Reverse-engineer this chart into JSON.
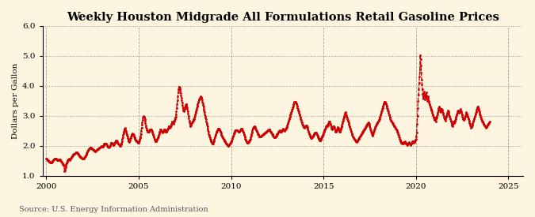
{
  "title": "Weekly Houston Midgrade All Formulations Retail Gasoline Prices",
  "ylabel": "Dollars per Gallon",
  "source": "Source: U.S. Energy Information Administration",
  "ylim": [
    1.0,
    6.0
  ],
  "xlim": [
    1999.8,
    2025.8
  ],
  "yticks": [
    1.0,
    2.0,
    3.0,
    4.0,
    5.0,
    6.0
  ],
  "xticks": [
    2000,
    2005,
    2010,
    2015,
    2020,
    2025
  ],
  "line_color": "#cc0000",
  "background_color": "#fdf5e0",
  "title_fontsize": 10.5,
  "label_fontsize": 7.5,
  "tick_fontsize": 7.5,
  "source_fontsize": 7,
  "prices": [
    1.58,
    1.57,
    1.55,
    1.53,
    1.52,
    1.51,
    1.5,
    1.49,
    1.48,
    1.47,
    1.46,
    1.45,
    1.44,
    1.43,
    1.43,
    1.44,
    1.46,
    1.48,
    1.5,
    1.52,
    1.53,
    1.54,
    1.55,
    1.56,
    1.57,
    1.58,
    1.58,
    1.57,
    1.56,
    1.55,
    1.54,
    1.53,
    1.52,
    1.52,
    1.52,
    1.53,
    1.54,
    1.55,
    1.55,
    1.54,
    1.52,
    1.5,
    1.48,
    1.46,
    1.44,
    1.42,
    1.4,
    1.38,
    1.36,
    1.35,
    1.33,
    1.15,
    1.18,
    1.22,
    1.28,
    1.34,
    1.38,
    1.42,
    1.45,
    1.48,
    1.51,
    1.53,
    1.55,
    1.56,
    1.55,
    1.54,
    1.53,
    1.54,
    1.56,
    1.58,
    1.6,
    1.62,
    1.64,
    1.66,
    1.68,
    1.7,
    1.71,
    1.72,
    1.73,
    1.74,
    1.74,
    1.75,
    1.76,
    1.77,
    1.78,
    1.79,
    1.78,
    1.77,
    1.76,
    1.74,
    1.72,
    1.7,
    1.68,
    1.66,
    1.65,
    1.64,
    1.63,
    1.62,
    1.61,
    1.6,
    1.59,
    1.58,
    1.57,
    1.56,
    1.56,
    1.57,
    1.58,
    1.6,
    1.62,
    1.64,
    1.65,
    1.67,
    1.7,
    1.73,
    1.76,
    1.79,
    1.82,
    1.84,
    1.86,
    1.88,
    1.9,
    1.91,
    1.92,
    1.93,
    1.94,
    1.94,
    1.93,
    1.92,
    1.91,
    1.9,
    1.89,
    1.88,
    1.87,
    1.86,
    1.85,
    1.84,
    1.83,
    1.82,
    1.82,
    1.83,
    1.84,
    1.85,
    1.86,
    1.87,
    1.88,
    1.89,
    1.9,
    1.91,
    1.92,
    1.93,
    1.94,
    1.95,
    1.96,
    1.97,
    1.98,
    1.99,
    1.99,
    1.98,
    1.97,
    1.98,
    2.0,
    2.02,
    2.04,
    2.06,
    2.07,
    2.08,
    2.08,
    2.07,
    2.06,
    2.05,
    2.03,
    2.01,
    1.99,
    1.97,
    1.96,
    1.95,
    1.96,
    1.97,
    1.98,
    2.0,
    2.03,
    2.06,
    2.09,
    2.1,
    2.09,
    2.08,
    2.06,
    2.04,
    2.02,
    2.03,
    2.05,
    2.07,
    2.09,
    2.11,
    2.13,
    2.15,
    2.17,
    2.18,
    2.16,
    2.14,
    2.12,
    2.1,
    2.08,
    2.06,
    2.05,
    2.04,
    2.02,
    2.0,
    2.0,
    2.02,
    2.04,
    2.06,
    2.1,
    2.16,
    2.22,
    2.28,
    2.35,
    2.42,
    2.48,
    2.52,
    2.55,
    2.58,
    2.6,
    2.55,
    2.5,
    2.45,
    2.4,
    2.35,
    2.3,
    2.26,
    2.22,
    2.18,
    2.15,
    2.12,
    2.15,
    2.18,
    2.22,
    2.27,
    2.3,
    2.33,
    2.35,
    2.38,
    2.4,
    2.42,
    2.4,
    2.38,
    2.35,
    2.32,
    2.28,
    2.25,
    2.22,
    2.2,
    2.18,
    2.17,
    2.15,
    2.14,
    2.13,
    2.12,
    2.11,
    2.1,
    2.12,
    2.15,
    2.18,
    2.22,
    2.26,
    2.32,
    2.4,
    2.5,
    2.6,
    2.7,
    2.78,
    2.86,
    2.93,
    2.98,
    3.0,
    2.98,
    2.95,
    2.9,
    2.83,
    2.76,
    2.68,
    2.62,
    2.57,
    2.53,
    2.5,
    2.48,
    2.47,
    2.47,
    2.48,
    2.5,
    2.52,
    2.53,
    2.54,
    2.55,
    2.55,
    2.54,
    2.52,
    2.5,
    2.47,
    2.44,
    2.4,
    2.36,
    2.32,
    2.28,
    2.24,
    2.2,
    2.17,
    2.15,
    2.14,
    2.15,
    2.17,
    2.2,
    2.22,
    2.25,
    2.28,
    2.32,
    2.36,
    2.4,
    2.44,
    2.48,
    2.51,
    2.54,
    2.55,
    2.53,
    2.5,
    2.48,
    2.46,
    2.45,
    2.46,
    2.48,
    2.5,
    2.52,
    2.55,
    2.55,
    2.53,
    2.5,
    2.48,
    2.47,
    2.48,
    2.5,
    2.52,
    2.55,
    2.58,
    2.61,
    2.64,
    2.65,
    2.64,
    2.62,
    2.6,
    2.62,
    2.65,
    2.68,
    2.72,
    2.76,
    2.8,
    2.8,
    2.78,
    2.76,
    2.74,
    2.78,
    2.82,
    2.86,
    2.9,
    2.94,
    2.98,
    3.05,
    3.15,
    3.25,
    3.38,
    3.52,
    3.65,
    3.78,
    3.88,
    3.95,
    3.98,
    3.95,
    3.9,
    3.84,
    3.76,
    3.68,
    3.6,
    3.52,
    3.44,
    3.36,
    3.29,
    3.23,
    3.18,
    3.15,
    3.18,
    3.22,
    3.27,
    3.32,
    3.36,
    3.4,
    3.38,
    3.34,
    3.28,
    3.22,
    3.15,
    3.08,
    3.0,
    2.92,
    2.84,
    2.78,
    2.72,
    2.68,
    2.65,
    2.68,
    2.72,
    2.76,
    2.78,
    2.8,
    2.82,
    2.84,
    2.86,
    2.88,
    2.9,
    2.95,
    3.0,
    3.05,
    3.1,
    3.15,
    3.2,
    3.25,
    3.3,
    3.35,
    3.4,
    3.44,
    3.48,
    3.52,
    3.55,
    3.58,
    3.6,
    3.62,
    3.64,
    3.65,
    3.64,
    3.6,
    3.54,
    3.48,
    3.42,
    3.36,
    3.3,
    3.24,
    3.18,
    3.12,
    3.06,
    3.0,
    2.94,
    2.88,
    2.82,
    2.76,
    2.7,
    2.64,
    2.58,
    2.52,
    2.46,
    2.4,
    2.36,
    2.32,
    2.28,
    2.24,
    2.2,
    2.17,
    2.14,
    2.12,
    2.1,
    2.08,
    2.06,
    2.08,
    2.12,
    2.16,
    2.2,
    2.24,
    2.28,
    2.32,
    2.36,
    2.4,
    2.44,
    2.47,
    2.5,
    2.52,
    2.55,
    2.57,
    2.58,
    2.58,
    2.57,
    2.55,
    2.52,
    2.49,
    2.46,
    2.43,
    2.4,
    2.37,
    2.34,
    2.31,
    2.28,
    2.26,
    2.24,
    2.22,
    2.2,
    2.18,
    2.16,
    2.14,
    2.12,
    2.1,
    2.08,
    2.06,
    2.04,
    2.02,
    2.01,
    2.0,
    2.0,
    2.01,
    2.02,
    2.04,
    2.06,
    2.08,
    2.1,
    2.12,
    2.14,
    2.16,
    2.18,
    2.22,
    2.26,
    2.3,
    2.34,
    2.38,
    2.42,
    2.45,
    2.47,
    2.49,
    2.51,
    2.52,
    2.53,
    2.53,
    2.52,
    2.51,
    2.5,
    2.49,
    2.48,
    2.47,
    2.46,
    2.47,
    2.49,
    2.51,
    2.53,
    2.55,
    2.57,
    2.58,
    2.57,
    2.55,
    2.53,
    2.5,
    2.47,
    2.44,
    2.4,
    2.36,
    2.32,
    2.28,
    2.24,
    2.2,
    2.17,
    2.14,
    2.12,
    2.11,
    2.1,
    2.11,
    2.12,
    2.13,
    2.14,
    2.15,
    2.17,
    2.2,
    2.24,
    2.28,
    2.33,
    2.38,
    2.43,
    2.48,
    2.53,
    2.57,
    2.6,
    2.62,
    2.63,
    2.64,
    2.64,
    2.63,
    2.61,
    2.58,
    2.55,
    2.52,
    2.49,
    2.46,
    2.43,
    2.4,
    2.38,
    2.36,
    2.34,
    2.32,
    2.31,
    2.3,
    2.3,
    2.31,
    2.32,
    2.33,
    2.34,
    2.35,
    2.36,
    2.37,
    2.38,
    2.39,
    2.4,
    2.41,
    2.42,
    2.43,
    2.44,
    2.45,
    2.46,
    2.47,
    2.48,
    2.49,
    2.5,
    2.51,
    2.52,
    2.53,
    2.54,
    2.55,
    2.54,
    2.52,
    2.5,
    2.48,
    2.46,
    2.44,
    2.42,
    2.4,
    2.38,
    2.36,
    2.34,
    2.32,
    2.3,
    2.29,
    2.28,
    2.28,
    2.29,
    2.3,
    2.32,
    2.34,
    2.36,
    2.38,
    2.4,
    2.42,
    2.44,
    2.46,
    2.48,
    2.5,
    2.51,
    2.5,
    2.49,
    2.48,
    2.47,
    2.48,
    2.49,
    2.51,
    2.53,
    2.55,
    2.57,
    2.56,
    2.54,
    2.52,
    2.5,
    2.52,
    2.54,
    2.56,
    2.58,
    2.6,
    2.62,
    2.65,
    2.68,
    2.72,
    2.76,
    2.8,
    2.84,
    2.88,
    2.92,
    2.96,
    3.0,
    3.04,
    3.08,
    3.12,
    3.16,
    3.2,
    3.24,
    3.28,
    3.32,
    3.36,
    3.4,
    3.44,
    3.47,
    3.48,
    3.48,
    3.46,
    3.44,
    3.41,
    3.38,
    3.34,
    3.3,
    3.26,
    3.22,
    3.18,
    3.14,
    3.1,
    3.06,
    3.02,
    2.98,
    2.94,
    2.9,
    2.86,
    2.82,
    2.78,
    2.74,
    2.7,
    2.67,
    2.65,
    2.63,
    2.62,
    2.61,
    2.62,
    2.63,
    2.65,
    2.67,
    2.68,
    2.67,
    2.65,
    2.62,
    2.58,
    2.54,
    2.5,
    2.46,
    2.42,
    2.38,
    2.35,
    2.32,
    2.3,
    2.28,
    2.27,
    2.26,
    2.27,
    2.28,
    2.3,
    2.32,
    2.34,
    2.36,
    2.38,
    2.4,
    2.42,
    2.44,
    2.45,
    2.44,
    2.43,
    2.42,
    2.4,
    2.37,
    2.34,
    2.31,
    2.28,
    2.25,
    2.22,
    2.2,
    2.18,
    2.17,
    2.18,
    2.2,
    2.22,
    2.25,
    2.28,
    2.31,
    2.34,
    2.37,
    2.4,
    2.43,
    2.46,
    2.49,
    2.52,
    2.55,
    2.58,
    2.61,
    2.64,
    2.67,
    2.68,
    2.67,
    2.65,
    2.68,
    2.72,
    2.76,
    2.8,
    2.82,
    2.8,
    2.77,
    2.74,
    2.7,
    2.66,
    2.62,
    2.58,
    2.55,
    2.57,
    2.6,
    2.63,
    2.66,
    2.65,
    2.62,
    2.58,
    2.54,
    2.5,
    2.46,
    2.48,
    2.5,
    2.53,
    2.56,
    2.59,
    2.62,
    2.6,
    2.57,
    2.54,
    2.51,
    2.48,
    2.46,
    2.5,
    2.54,
    2.58,
    2.62,
    2.66,
    2.7,
    2.75,
    2.8,
    2.85,
    2.9,
    2.95,
    3.0,
    3.04,
    3.08,
    3.12,
    3.1,
    3.06,
    3.02,
    2.98,
    2.94,
    2.9,
    2.86,
    2.82,
    2.78,
    2.74,
    2.7,
    2.66,
    2.62,
    2.58,
    2.54,
    2.5,
    2.46,
    2.42,
    2.38,
    2.35,
    2.32,
    2.3,
    2.28,
    2.26,
    2.24,
    2.22,
    2.2,
    2.18,
    2.16,
    2.15,
    2.14,
    2.13,
    2.14,
    2.16,
    2.18,
    2.2,
    2.22,
    2.24,
    2.26,
    2.28,
    2.3,
    2.32,
    2.34,
    2.36,
    2.38,
    2.4,
    2.42,
    2.44,
    2.46,
    2.48,
    2.5,
    2.52,
    2.54,
    2.56,
    2.58,
    2.6,
    2.62,
    2.64,
    2.66,
    2.68,
    2.7,
    2.72,
    2.74,
    2.76,
    2.78,
    2.75,
    2.72,
    2.68,
    2.64,
    2.6,
    2.56,
    2.52,
    2.48,
    2.44,
    2.4,
    2.37,
    2.34,
    2.38,
    2.42,
    2.46,
    2.5,
    2.54,
    2.58,
    2.62,
    2.65,
    2.68,
    2.7,
    2.72,
    2.74,
    2.76,
    2.78,
    2.8,
    2.82,
    2.84,
    2.86,
    2.9,
    2.94,
    2.98,
    3.02,
    3.06,
    3.1,
    3.14,
    3.18,
    3.22,
    3.26,
    3.3,
    3.34,
    3.38,
    3.42,
    3.46,
    3.48,
    3.46,
    3.44,
    3.41,
    3.38,
    3.34,
    3.3,
    3.26,
    3.22,
    3.18,
    3.14,
    3.1,
    3.06,
    3.02,
    2.98,
    2.94,
    2.9,
    2.87,
    2.84,
    2.82,
    2.8,
    2.78,
    2.76,
    2.74,
    2.72,
    2.7,
    2.68,
    2.66,
    2.64,
    2.62,
    2.6,
    2.58,
    2.56,
    2.54,
    2.52,
    2.5,
    2.48,
    2.44,
    2.4,
    2.36,
    2.32,
    2.28,
    2.24,
    2.2,
    2.17,
    2.14,
    2.12,
    2.1,
    2.09,
    2.08,
    2.09,
    2.11,
    2.13,
    2.1,
    2.08,
    2.1,
    2.12,
    2.14,
    2.13,
    2.1,
    2.08,
    2.06,
    2.04,
    2.02,
    2.04,
    2.06,
    2.08,
    2.1,
    2.12,
    2.1,
    2.08,
    2.06,
    2.04,
    2.02,
    2.04,
    2.06,
    2.08,
    2.11,
    2.14,
    2.16,
    2.14,
    2.12,
    2.1,
    2.12,
    2.14,
    2.16,
    2.18,
    2.2,
    2.22,
    2.3,
    2.45,
    2.72,
    3.0,
    3.25,
    3.5,
    3.7,
    3.88,
    4.1,
    4.3,
    4.55,
    5.02,
    4.9,
    4.68,
    4.45,
    4.22,
    4.05,
    3.88,
    3.72,
    3.58,
    3.65,
    3.72,
    3.8,
    3.72,
    3.62,
    3.55,
    3.62,
    3.7,
    3.78,
    3.68,
    3.58,
    3.5,
    3.6,
    3.65,
    3.55,
    3.5,
    3.45,
    3.4,
    3.36,
    3.32,
    3.28,
    3.24,
    3.2,
    3.18,
    3.14,
    3.1,
    3.06,
    3.02,
    2.98,
    2.94,
    2.9,
    2.86,
    2.9,
    2.94,
    2.88,
    2.82,
    2.88,
    2.94,
    3.0,
    3.06,
    3.1,
    3.15,
    3.2,
    3.25,
    3.28,
    3.3,
    3.25,
    3.2,
    3.15,
    3.12,
    3.16,
    3.2,
    3.24,
    3.2,
    3.15,
    3.1,
    3.05,
    3.0,
    2.95,
    2.92,
    2.88,
    2.85,
    2.88,
    2.92,
    2.96,
    3.0,
    3.05,
    3.1,
    3.14,
    3.18,
    3.14,
    3.1,
    3.05,
    3.0,
    2.96,
    2.92,
    2.88,
    2.84,
    2.8,
    2.76,
    2.72,
    2.68,
    2.65,
    2.7,
    2.75,
    2.8,
    2.78,
    2.76,
    2.8,
    2.85,
    2.9,
    2.94,
    2.98,
    3.02,
    3.06,
    3.1,
    3.14,
    3.18,
    3.16,
    3.14,
    3.12,
    3.1,
    3.14,
    3.18,
    3.22,
    3.18,
    3.14,
    3.1,
    3.06,
    3.02,
    2.98,
    2.94,
    2.9,
    2.86,
    2.88,
    2.9,
    2.92,
    2.96,
    3.0,
    3.04,
    3.08,
    3.12,
    3.08,
    3.04,
    3.0,
    2.96,
    2.92,
    2.88,
    2.84,
    2.8,
    2.76,
    2.72,
    2.68,
    2.64,
    2.6,
    2.62,
    2.64,
    2.68,
    2.72,
    2.76,
    2.8,
    2.84,
    2.88,
    2.92,
    2.96,
    3.0,
    3.04,
    3.08,
    3.12,
    3.16,
    3.2,
    3.24,
    3.28,
    3.32,
    3.28,
    3.22,
    3.18,
    3.14,
    3.1,
    3.06,
    3.02,
    2.98,
    2.94,
    2.9,
    2.86,
    2.82,
    2.8,
    2.78,
    2.76,
    2.74,
    2.72,
    2.7,
    2.68,
    2.66,
    2.64,
    2.62,
    2.6,
    2.62,
    2.64,
    2.66,
    2.68,
    2.7,
    2.72,
    2.74,
    2.76,
    2.78,
    2.8
  ],
  "start_year": 2000,
  "weeks_per_year": 52
}
